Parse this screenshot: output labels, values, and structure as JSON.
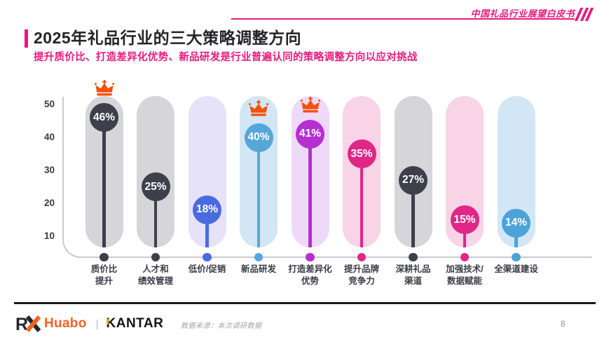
{
  "header": {
    "watermark": "中国礼品行业展望白皮书",
    "accent_color": "#e81a7d"
  },
  "title": "2025年礼品行业的三大策略调整方向",
  "subtitle": "提升质价比、打造差异化优势、新品研发是行业普遍认同的策略调整方向以应对挑战",
  "chart_data": {
    "type": "bar",
    "variant": "lollipop-pill",
    "title": "",
    "xlabel": "",
    "ylabel": "",
    "ylim": [
      0,
      50
    ],
    "yticks": [
      50,
      40,
      30,
      20,
      10
    ],
    "grid": false,
    "unit": "%",
    "categories": [
      "质价比提升",
      "人才和绩效管理",
      "低价/促销",
      "新品研发",
      "打造差异化优势",
      "提升品牌竞争力",
      "深耕礼品渠道",
      "加强技术/数据赋能",
      "全渠道建设"
    ],
    "values": [
      46,
      25,
      18,
      40,
      41,
      35,
      27,
      15,
      14
    ],
    "crowned": [
      true,
      false,
      false,
      true,
      true,
      false,
      false,
      false,
      false
    ],
    "columns": [
      {
        "label_lines": [
          "质价比",
          "提升"
        ],
        "value_label": "46%",
        "value": 46,
        "crown": true,
        "dot_color": "#3f3f4b",
        "pill_color": "#d6d5da"
      },
      {
        "label_lines": [
          "人才和",
          "绩效管理"
        ],
        "value_label": "25%",
        "value": 25,
        "crown": false,
        "dot_color": "#3f3f4b",
        "pill_color": "#d6d5da"
      },
      {
        "label_lines": [
          "低价/促销"
        ],
        "value_label": "18%",
        "value": 18,
        "crown": false,
        "dot_color": "#4a6be0",
        "pill_color": "#e6e2f8"
      },
      {
        "label_lines": [
          "新品研发"
        ],
        "value_label": "40%",
        "value": 40,
        "crown": true,
        "dot_color": "#55a7da",
        "pill_color": "#d2e6f5"
      },
      {
        "label_lines": [
          "打造差异化",
          "优势"
        ],
        "value_label": "41%",
        "value": 41,
        "crown": true,
        "dot_color": "#b52fd1",
        "pill_color": "#efd9f8"
      },
      {
        "label_lines": [
          "提升品牌",
          "竞争力"
        ],
        "value_label": "35%",
        "value": 35,
        "crown": false,
        "dot_color": "#e02787",
        "pill_color": "#f8d4e6"
      },
      {
        "label_lines": [
          "深耕礼品",
          "渠道"
        ],
        "value_label": "27%",
        "value": 27,
        "crown": false,
        "dot_color": "#3f3f4b",
        "pill_color": "#d6d5da"
      },
      {
        "label_lines": [
          "加强技术/",
          "数据赋能"
        ],
        "value_label": "15%",
        "value": 15,
        "crown": false,
        "dot_color": "#e02787",
        "pill_color": "#f8d4e6"
      },
      {
        "label_lines": [
          "全渠道建设"
        ],
        "value_label": "14%",
        "value": 14,
        "crown": false,
        "dot_color": "#4ba3d9",
        "pill_color": "#d3e6f5"
      }
    ],
    "crown_color": "#f4500a",
    "axis_color": "#cacace"
  },
  "footer": {
    "logo_rx": "R",
    "logo_huabo": "Huabo",
    "logo_separator": "|",
    "logo_kantar": "KANTAR",
    "source": "数据来源：本次调研数据",
    "page": "8"
  }
}
